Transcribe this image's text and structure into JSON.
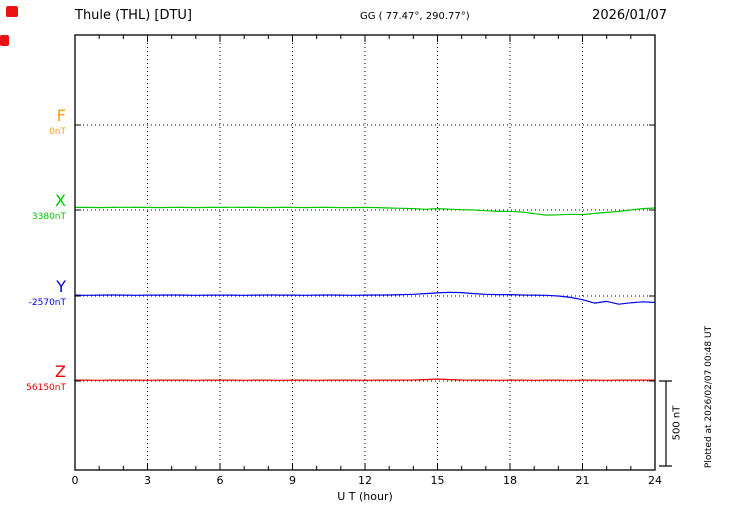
{
  "header": {
    "station": "Thule (THL)  [DTU]",
    "coords": "GG ( 77.47°, 290.77°)",
    "date": "2026/01/07"
  },
  "footer": {
    "note": "Plotted at 2026/02/07 00:48 UT"
  },
  "scalebar": {
    "label": "500 nT",
    "value_nT": 500
  },
  "chart_data": {
    "type": "line",
    "title": "Thule (THL) [DTU] magnetogram, 2026/01/07",
    "xlabel": "U T (hour)",
    "xlim": [
      0,
      24
    ],
    "x_ticks": [
      0,
      3,
      6,
      9,
      12,
      15,
      18,
      21,
      24
    ],
    "x_hours_start": 0,
    "x_hours_step": 0.5,
    "nT_per_division": 500,
    "grid": "dotted",
    "series": [
      {
        "name": "F",
        "color": "#FFA000",
        "baseline_nT": 0,
        "baseline_label": "0nT",
        "values": []
      },
      {
        "name": "X",
        "color": "#00C800",
        "baseline_nT": 3380,
        "baseline_label": "3380nT",
        "values": [
          3395,
          3395,
          3394,
          3395,
          3396,
          3395,
          3395,
          3394,
          3395,
          3395,
          3394,
          3395,
          3395,
          3396,
          3395,
          3395,
          3394,
          3395,
          3395,
          3394,
          3395,
          3395,
          3394,
          3394,
          3395,
          3394,
          3392,
          3390,
          3388,
          3384,
          3388,
          3385,
          3382,
          3380,
          3376,
          3372,
          3372,
          3368,
          3358,
          3350,
          3352,
          3355,
          3353,
          3360,
          3366,
          3372,
          3380,
          3388,
          3392
        ]
      },
      {
        "name": "Y",
        "color": "#0000EE",
        "baseline_nT": -2570,
        "baseline_label": "-2570nT",
        "values": [
          -2565,
          -2566,
          -2565,
          -2564,
          -2565,
          -2566,
          -2565,
          -2565,
          -2564,
          -2565,
          -2566,
          -2565,
          -2565,
          -2565,
          -2566,
          -2565,
          -2564,
          -2565,
          -2565,
          -2566,
          -2565,
          -2564,
          -2565,
          -2566,
          -2565,
          -2564,
          -2564,
          -2562,
          -2560,
          -2556,
          -2552,
          -2548,
          -2550,
          -2556,
          -2560,
          -2562,
          -2562,
          -2564,
          -2565,
          -2566,
          -2570,
          -2578,
          -2592,
          -2612,
          -2602,
          -2618,
          -2610,
          -2604,
          -2608
        ]
      },
      {
        "name": "Z",
        "color": "#E80000",
        "baseline_nT": 56150,
        "baseline_label": "56150nT",
        "values": [
          56155,
          56155,
          56154,
          56155,
          56155,
          56155,
          56154,
          56155,
          56155,
          56155,
          56154,
          56155,
          56155,
          56155,
          56154,
          56155,
          56155,
          56154,
          56155,
          56155,
          56154,
          56155,
          56155,
          56155,
          56154,
          56155,
          56155,
          56155,
          56156,
          56158,
          56162,
          56158,
          56156,
          56155,
          56155,
          56154,
          56155,
          56155,
          56154,
          56155,
          56155,
          56154,
          56155,
          56155,
          56154,
          56155,
          56155,
          56155,
          56155
        ]
      }
    ]
  }
}
